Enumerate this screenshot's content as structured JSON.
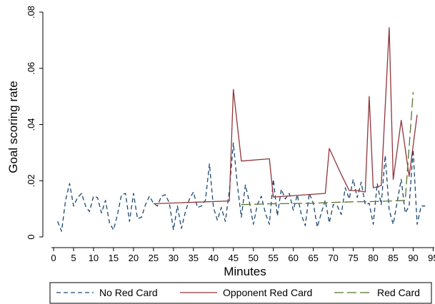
{
  "chart_data": {
    "type": "line",
    "xlabel": "Minutes",
    "ylabel": "Goal scoring rate",
    "xlim": [
      0,
      96
    ],
    "ylim": [
      0,
      0.08
    ],
    "xticks": [
      0,
      5,
      10,
      15,
      20,
      25,
      30,
      35,
      40,
      45,
      50,
      55,
      60,
      65,
      70,
      75,
      80,
      85,
      90,
      95
    ],
    "xtick_labels": [
      "0",
      "5",
      "10",
      "15",
      "20",
      "25",
      "30",
      "35",
      "40",
      "45",
      "50",
      "55",
      "60",
      "65",
      "70",
      "75",
      "80",
      "85",
      "90",
      "95"
    ],
    "yticks": [
      0,
      0.02,
      0.04,
      0.06,
      0.08
    ],
    "ytick_labels": [
      "0",
      ".02",
      ".04",
      ".06",
      ".08"
    ],
    "grid": false,
    "legend_position": "bottom",
    "series": [
      {
        "name": "No Red Card",
        "color": "#1a476f",
        "dash": "short-dash",
        "x": [
          1,
          2,
          3,
          4,
          5,
          6,
          7,
          8,
          9,
          10,
          11,
          12,
          13,
          14,
          15,
          16,
          17,
          18,
          19,
          20,
          21,
          22,
          23,
          24,
          25,
          26,
          27,
          28,
          29,
          30,
          31,
          32,
          33,
          34,
          35,
          36,
          37,
          38,
          39,
          40,
          41,
          42,
          43,
          44,
          45,
          46,
          47,
          48,
          49,
          50,
          51,
          52,
          53,
          54,
          55,
          56,
          57,
          58,
          59,
          60,
          61,
          62,
          63,
          64,
          65,
          66,
          67,
          68,
          69,
          70,
          71,
          72,
          73,
          74,
          75,
          76,
          77,
          78,
          79,
          80,
          81,
          82,
          83,
          84,
          85,
          86,
          87,
          88,
          89,
          90,
          91,
          92,
          93
        ],
        "y": [
          0.0055,
          0.002,
          0.013,
          0.019,
          0.011,
          0.014,
          0.0155,
          0.011,
          0.009,
          0.0145,
          0.014,
          0.0085,
          0.013,
          0.005,
          0.0025,
          0.008,
          0.015,
          0.0155,
          0.0055,
          0.0155,
          0.0065,
          0.007,
          0.0115,
          0.0145,
          0.012,
          0.011,
          0.0145,
          0.015,
          0.012,
          0.0025,
          0.011,
          0.003,
          0.009,
          0.0135,
          0.016,
          0.0105,
          0.011,
          0.013,
          0.026,
          0.0105,
          0.006,
          0.0105,
          0.0055,
          0.0165,
          0.0335,
          0.0185,
          0.007,
          0.0185,
          0.0125,
          0.0045,
          0.0115,
          0.0145,
          0.0085,
          0.0045,
          0.0205,
          0.0075,
          0.017,
          0.0135,
          0.0155,
          0.0095,
          0.015,
          0.008,
          0.004,
          0.0155,
          0.012,
          0.0035,
          0.0085,
          0.013,
          0.005,
          0.0115,
          0.011,
          0.008,
          0.0175,
          0.0135,
          0.0205,
          0.014,
          0.0195,
          0.0115,
          0.012,
          0.0045,
          0.019,
          0.0115,
          0.029,
          0.0095,
          0.0045,
          0.0125,
          0.0205,
          0.0085,
          0.011,
          0.031,
          0.0045,
          0.011,
          0.011
        ]
      },
      {
        "name": "Opponent Red Card",
        "color": "#90353b",
        "dash": "solid",
        "x": [
          25,
          44,
          45,
          47,
          54,
          55,
          68,
          69,
          72,
          74,
          76,
          78,
          79,
          80,
          82,
          84,
          85,
          87,
          89,
          91
        ],
        "y": [
          0.0118,
          0.0128,
          0.0525,
          0.027,
          0.0278,
          0.0142,
          0.0155,
          0.0315,
          0.0222,
          0.0165,
          0.0165,
          0.016,
          0.05,
          0.0175,
          0.0182,
          0.0745,
          0.0205,
          0.0415,
          0.0215,
          0.0435
        ]
      },
      {
        "name": "Red Card",
        "color": "#55752f",
        "dash": "long-dash",
        "x": [
          47,
          55,
          65,
          70,
          75,
          80,
          85,
          88,
          90
        ],
        "y": [
          0.0115,
          0.0118,
          0.012,
          0.0123,
          0.0125,
          0.0126,
          0.0128,
          0.013,
          0.0515
        ]
      }
    ]
  }
}
